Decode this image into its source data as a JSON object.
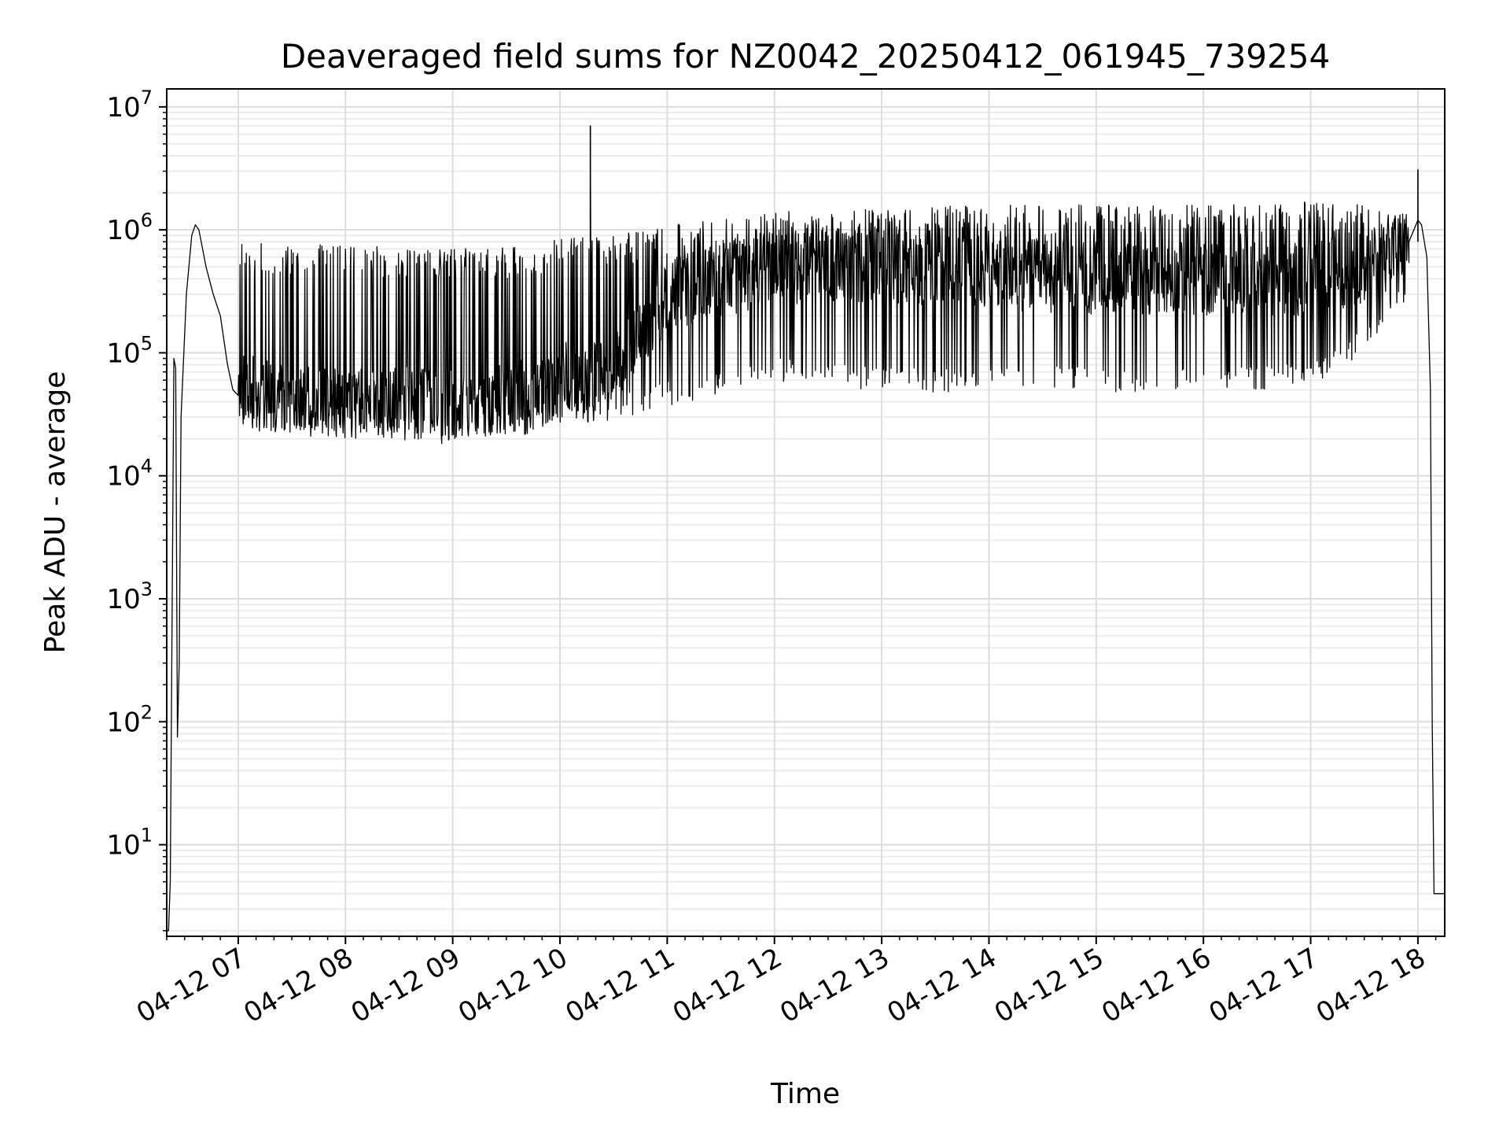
{
  "chart_data": {
    "type": "line",
    "title": "Deaveraged field sums for NZ0042_20250412_061945_739254",
    "xlabel": "Time",
    "ylabel": "Peak ADU - average",
    "yscale": "log",
    "ylim": [
      1.8,
      14000000
    ],
    "xlim": [
      "2025-04-12 06:20",
      "2025-04-12 18:15"
    ],
    "grid": true,
    "x_ticks": [
      {
        "t": "2025-04-12 07:00",
        "label": "04-12 07"
      },
      {
        "t": "2025-04-12 08:00",
        "label": "04-12 08"
      },
      {
        "t": "2025-04-12 09:00",
        "label": "04-12 09"
      },
      {
        "t": "2025-04-12 10:00",
        "label": "04-12 10"
      },
      {
        "t": "2025-04-12 11:00",
        "label": "04-12 11"
      },
      {
        "t": "2025-04-12 12:00",
        "label": "04-12 12"
      },
      {
        "t": "2025-04-12 13:00",
        "label": "04-12 13"
      },
      {
        "t": "2025-04-12 14:00",
        "label": "04-12 14"
      },
      {
        "t": "2025-04-12 15:00",
        "label": "04-12 15"
      },
      {
        "t": "2025-04-12 16:00",
        "label": "04-12 16"
      },
      {
        "t": "2025-04-12 17:00",
        "label": "04-12 17"
      },
      {
        "t": "2025-04-12 18:00",
        "label": "04-12 18"
      }
    ],
    "y_ticks": [
      {
        "value": 10,
        "base": "10",
        "exp": "1"
      },
      {
        "value": 100,
        "base": "10",
        "exp": "2"
      },
      {
        "value": 1000,
        "base": "10",
        "exp": "3"
      },
      {
        "value": 10000,
        "base": "10",
        "exp": "4"
      },
      {
        "value": 100000,
        "base": "10",
        "exp": "5"
      },
      {
        "value": 1000000,
        "base": "10",
        "exp": "6"
      },
      {
        "value": 10000000,
        "base": "10",
        "exp": "7"
      }
    ],
    "series": [
      {
        "color": "#000000",
        "points": [
          {
            "t": "2025-04-12 06:20",
            "y": 2
          },
          {
            "t": "2025-04-12 06:21",
            "y": 2
          },
          {
            "t": "2025-04-12 06:22",
            "y": 5
          },
          {
            "t": "2025-04-12 06:24",
            "y": 90000
          },
          {
            "t": "2025-04-12 06:25",
            "y": 75000
          },
          {
            "t": "2025-04-12 06:26",
            "y": 75
          },
          {
            "t": "2025-04-12 06:27",
            "y": 300
          },
          {
            "t": "2025-04-12 06:28",
            "y": 30000
          },
          {
            "t": "2025-04-12 06:31",
            "y": 300000
          },
          {
            "t": "2025-04-12 06:34",
            "y": 900000
          },
          {
            "t": "2025-04-12 06:36",
            "y": 1100000
          },
          {
            "t": "2025-04-12 06:38",
            "y": 1000000
          },
          {
            "t": "2025-04-12 06:42",
            "y": 500000
          },
          {
            "t": "2025-04-12 06:46",
            "y": 300000
          },
          {
            "t": "2025-04-12 06:50",
            "y": 200000
          },
          {
            "t": "2025-04-12 06:54",
            "y": 80000
          },
          {
            "t": "2025-04-12 06:57",
            "y": 50000
          },
          {
            "t": "2025-04-12 07:00",
            "y": 45000
          }
        ],
        "envelope": [
          {
            "t": "2025-04-12 07:00",
            "low": 30000,
            "typical": 50000,
            "high": 800000
          },
          {
            "t": "2025-04-12 08:00",
            "low": 24000,
            "typical": 40000,
            "high": 750000
          },
          {
            "t": "2025-04-12 09:00",
            "low": 22000,
            "typical": 38000,
            "high": 700000
          },
          {
            "t": "2025-04-12 09:45",
            "low": 26000,
            "typical": 45000,
            "high": 750000
          },
          {
            "t": "2025-04-12 10:00",
            "low": 30000,
            "typical": 60000,
            "high": 850000
          },
          {
            "t": "2025-04-12 10:30",
            "low": 35000,
            "typical": 70000,
            "high": 900000
          },
          {
            "t": "2025-04-12 11:00",
            "low": 45000,
            "typical": 300000,
            "high": 1100000
          },
          {
            "t": "2025-04-12 12:00",
            "low": 70000,
            "typical": 500000,
            "high": 1400000
          },
          {
            "t": "2025-04-12 13:00",
            "low": 60000,
            "typical": 500000,
            "high": 1500000
          },
          {
            "t": "2025-04-12 14:00",
            "low": 60000,
            "typical": 450000,
            "high": 1600000
          },
          {
            "t": "2025-04-12 15:00",
            "low": 60000,
            "typical": 400000,
            "high": 1600000
          },
          {
            "t": "2025-04-12 16:00",
            "low": 60000,
            "typical": 400000,
            "high": 1600000
          },
          {
            "t": "2025-04-12 17:00",
            "low": 65000,
            "typical": 400000,
            "high": 1700000
          },
          {
            "t": "2025-04-12 17:30",
            "low": 120000,
            "typical": 500000,
            "high": 1600000
          },
          {
            "t": "2025-04-12 17:55",
            "low": 350000,
            "typical": 800000,
            "high": 1300000
          }
        ],
        "spikes": [
          {
            "t": "2025-04-12 10:17",
            "y": 7000000
          },
          {
            "t": "2025-04-12 18:00",
            "y": 3100000
          }
        ],
        "tail": [
          {
            "t": "2025-04-12 17:55",
            "y": 800000
          },
          {
            "t": "2025-04-12 18:00",
            "y": 1200000
          },
          {
            "t": "2025-04-12 18:02",
            "y": 1100000
          },
          {
            "t": "2025-04-12 18:05",
            "y": 600000
          },
          {
            "t": "2025-04-12 18:07",
            "y": 50000
          },
          {
            "t": "2025-04-12 18:08",
            "y": 100
          },
          {
            "t": "2025-04-12 18:09",
            "y": 4
          },
          {
            "t": "2025-04-12 18:15",
            "y": 4
          }
        ]
      }
    ]
  }
}
